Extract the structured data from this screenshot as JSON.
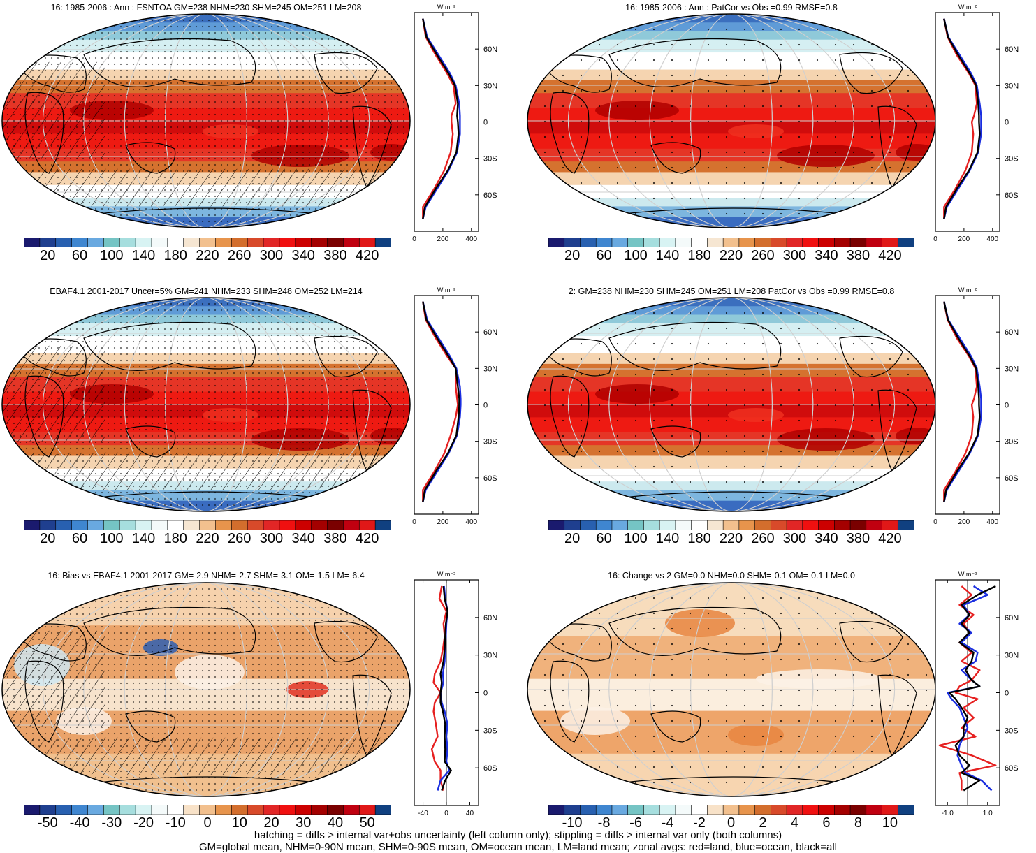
{
  "colors": {
    "abs_palette": [
      "#1a1a6e",
      "#1f3f8f",
      "#2860b0",
      "#3f86d0",
      "#69a9e0",
      "#75c4c4",
      "#a6dede",
      "#d8f3f3",
      "#f4fafa",
      "#ffffff",
      "#f6e6d2",
      "#f2c08e",
      "#e7944c",
      "#d36e2d",
      "#d84a2a",
      "#e12626",
      "#f01010",
      "#cc0000",
      "#a40000",
      "#7a0000",
      "#c00010",
      "#e01818",
      "#104080"
    ],
    "diff_palette": [
      "#1a1a6e",
      "#1f3f8f",
      "#2860b0",
      "#3f86d0",
      "#69a9e0",
      "#75c4c4",
      "#a6dede",
      "#d8f3f3",
      "#f4fafa",
      "#ffffff",
      "#f8e2c8",
      "#f2c08e",
      "#e7944c",
      "#d36e2d",
      "#d84a2a",
      "#e12626",
      "#f01010",
      "#cc0000",
      "#a40000",
      "#7a0000",
      "#c00010",
      "#e01818",
      "#104080"
    ],
    "land_line": "#e62020",
    "ocean_line": "#1a2ee0",
    "all_line": "#000000"
  },
  "panels": [
    {
      "id": "p1",
      "title": "16: 1985-2006 : Ann : FSNTOA GM=238 NHM=230 SHM=245 OM=251 LM=208",
      "kind": "abs",
      "hatch": true,
      "stipple": "dense",
      "cb_labels": [
        "20",
        "60",
        "100",
        "140",
        "180",
        "220",
        "260",
        "300",
        "340",
        "380",
        "420"
      ],
      "zonal_unit": "W m⁻²",
      "zonal_xticks": [
        "0",
        "200",
        "400"
      ],
      "zonal_lat_labels": [
        "60N",
        "30N",
        "0",
        "30S",
        "60S"
      ]
    },
    {
      "id": "p2",
      "title": "16: 1985-2006 : Ann : PatCor vs Obs =0.99 RMSE=0.8",
      "kind": "abs",
      "hatch": false,
      "stipple": "sparse",
      "cb_labels": [
        "20",
        "60",
        "100",
        "140",
        "180",
        "220",
        "260",
        "300",
        "340",
        "380",
        "420"
      ],
      "zonal_unit": "W m⁻²",
      "zonal_xticks": [
        "0",
        "200",
        "400"
      ],
      "zonal_lat_labels": [
        "60N",
        "30N",
        "0",
        "30S",
        "60S"
      ]
    },
    {
      "id": "p3",
      "title": "EBAF4.1 2001-2017 Uncer=5% GM=241 NHM=233 SHM=248 OM=252 LM=214",
      "kind": "abs",
      "hatch": true,
      "stipple": "dense",
      "cb_labels": [
        "20",
        "60",
        "100",
        "140",
        "180",
        "220",
        "260",
        "300",
        "340",
        "380",
        "420"
      ],
      "zonal_unit": "W m⁻²",
      "zonal_xticks": [
        "0",
        "200",
        "400"
      ],
      "zonal_lat_labels": [
        "60N",
        "30N",
        "0",
        "30S",
        "60S"
      ]
    },
    {
      "id": "p4",
      "title": "2: GM=238 NHM=230 SHM=245 OM=251 LM=208 PatCor vs Obs =0.99 RMSE=0.8",
      "kind": "abs",
      "hatch": false,
      "stipple": "sparse",
      "cb_labels": [
        "20",
        "60",
        "100",
        "140",
        "180",
        "220",
        "260",
        "300",
        "340",
        "380",
        "420"
      ],
      "zonal_unit": "W m⁻²",
      "zonal_xticks": [
        "0",
        "200",
        "400"
      ],
      "zonal_lat_labels": [
        "60N",
        "30N",
        "0",
        "30S",
        "60S"
      ]
    },
    {
      "id": "p5",
      "title": "16: Bias vs EBAF4.1 2001-2017 GM=-2.9 NHM=-2.7 SHM=-3.1 OM=-1.5 LM=-6.4",
      "kind": "bias",
      "hatch": true,
      "stipple": "dense",
      "cb_labels": [
        "-50",
        "-40",
        "-30",
        "-20",
        "-10",
        "0",
        "10",
        "20",
        "30",
        "40",
        "50"
      ],
      "zonal_unit": "W m⁻²",
      "zonal_xticks": [
        "-40",
        "0",
        "40"
      ],
      "zonal_lat_labels": [
        "60N",
        "30N",
        "0",
        "30S",
        "60S"
      ]
    },
    {
      "id": "p6",
      "title": "16: Change vs 2 GM=0.0 NHM=0.0 SHM=-0.1 OM=-0.1 LM=0.0",
      "kind": "change",
      "hatch": false,
      "stipple": "sparse",
      "cb_labels": [
        "-10",
        "-8",
        "-6",
        "-4",
        "-2",
        "0",
        "2",
        "4",
        "6",
        "8",
        "10"
      ],
      "zonal_unit": "W m⁻²",
      "zonal_xticks": [
        "-1.0",
        "1.0"
      ],
      "zonal_lat_labels": [
        "60N",
        "30N",
        "0",
        "30S",
        "60S"
      ]
    }
  ],
  "chart_data": [
    {
      "type": "line",
      "panel": "p1",
      "x_axis": "W m⁻²",
      "xlim": [
        0,
        450
      ],
      "ylim": [
        -90,
        90
      ],
      "y_tick_labels": [
        "60N",
        "30N",
        "0",
        "30S",
        "60S"
      ],
      "series": [
        {
          "name": "red=land",
          "lat": [
            85,
            70,
            55,
            40,
            30,
            15,
            5,
            0,
            -10,
            -25,
            -40,
            -55,
            -70,
            -80
          ],
          "values": [
            60,
            80,
            150,
            230,
            275,
            290,
            260,
            260,
            270,
            255,
            210,
            140,
            60,
            60
          ]
        },
        {
          "name": "blue=ocean",
          "lat": [
            85,
            70,
            55,
            40,
            30,
            15,
            5,
            0,
            -10,
            -25,
            -40,
            -55,
            -70,
            -80
          ],
          "values": [
            60,
            90,
            170,
            250,
            290,
            315,
            320,
            320,
            320,
            300,
            240,
            160,
            80,
            60
          ]
        },
        {
          "name": "black=all",
          "lat": [
            85,
            70,
            55,
            40,
            30,
            15,
            5,
            0,
            -10,
            -25,
            -40,
            -55,
            -70,
            -80
          ],
          "values": [
            60,
            85,
            160,
            240,
            285,
            305,
            300,
            305,
            310,
            295,
            235,
            150,
            75,
            60
          ]
        }
      ]
    },
    {
      "type": "line",
      "panel": "p2",
      "x_axis": "W m⁻²",
      "xlim": [
        0,
        450
      ],
      "ylim": [
        -90,
        90
      ],
      "y_tick_labels": [
        "60N",
        "30N",
        "0",
        "30S",
        "60S"
      ],
      "series": [
        {
          "name": "red=land",
          "lat": [
            85,
            70,
            55,
            40,
            30,
            15,
            5,
            0,
            -10,
            -25,
            -40,
            -55,
            -70,
            -80
          ],
          "values": [
            60,
            85,
            150,
            235,
            280,
            290,
            270,
            255,
            265,
            255,
            210,
            140,
            60,
            60
          ]
        },
        {
          "name": "blue=ocean",
          "lat": [
            85,
            70,
            55,
            40,
            30,
            15,
            5,
            0,
            -10,
            -25,
            -40,
            -55,
            -70,
            -80
          ],
          "values": [
            60,
            90,
            170,
            250,
            290,
            310,
            320,
            320,
            320,
            300,
            240,
            160,
            80,
            60
          ]
        },
        {
          "name": "black=all",
          "lat": [
            85,
            70,
            55,
            40,
            30,
            15,
            5,
            0,
            -10,
            -25,
            -40,
            -55,
            -70,
            -80
          ],
          "values": [
            60,
            88,
            160,
            240,
            285,
            300,
            305,
            305,
            310,
            295,
            235,
            150,
            75,
            60
          ]
        }
      ]
    },
    {
      "type": "line",
      "panel": "p3",
      "x_axis": "W m⁻²",
      "xlim": [
        0,
        450
      ],
      "ylim": [
        -90,
        90
      ],
      "y_tick_labels": [
        "60N",
        "30N",
        "0",
        "30S",
        "60S"
      ],
      "series": [
        {
          "name": "red=land",
          "lat": [
            85,
            70,
            55,
            40,
            30,
            15,
            5,
            0,
            -10,
            -25,
            -40,
            -55,
            -70,
            -80
          ],
          "values": [
            60,
            80,
            150,
            230,
            290,
            290,
            300,
            305,
            290,
            255,
            210,
            140,
            60,
            60
          ]
        },
        {
          "name": "blue=ocean",
          "lat": [
            85,
            70,
            55,
            40,
            30,
            15,
            5,
            0,
            -10,
            -25,
            -40,
            -55,
            -70,
            -80
          ],
          "values": [
            60,
            90,
            170,
            250,
            295,
            320,
            325,
            325,
            320,
            300,
            240,
            160,
            80,
            60
          ]
        },
        {
          "name": "black=all",
          "lat": [
            85,
            70,
            55,
            40,
            30,
            15,
            5,
            0,
            -10,
            -25,
            -40,
            -55,
            -70,
            -80
          ],
          "values": [
            60,
            85,
            160,
            240,
            290,
            305,
            315,
            315,
            310,
            295,
            235,
            150,
            75,
            60
          ]
        }
      ]
    },
    {
      "type": "line",
      "panel": "p4",
      "x_axis": "W m⁻²",
      "xlim": [
        0,
        450
      ],
      "ylim": [
        -90,
        90
      ],
      "y_tick_labels": [
        "60N",
        "30N",
        "0",
        "30S",
        "60S"
      ],
      "series": [
        {
          "name": "red=land",
          "lat": [
            85,
            70,
            55,
            40,
            30,
            15,
            5,
            0,
            -10,
            -25,
            -40,
            -55,
            -70,
            -80
          ],
          "values": [
            60,
            85,
            150,
            235,
            280,
            290,
            270,
            255,
            265,
            255,
            210,
            140,
            60,
            60
          ]
        },
        {
          "name": "blue=ocean",
          "lat": [
            85,
            70,
            55,
            40,
            30,
            15,
            5,
            0,
            -10,
            -25,
            -40,
            -55,
            -70,
            -80
          ],
          "values": [
            60,
            90,
            170,
            250,
            290,
            310,
            320,
            320,
            320,
            300,
            240,
            160,
            80,
            60
          ]
        },
        {
          "name": "black=all",
          "lat": [
            85,
            70,
            55,
            40,
            30,
            15,
            5,
            0,
            -10,
            -25,
            -40,
            -55,
            -70,
            -80
          ],
          "values": [
            60,
            88,
            160,
            240,
            285,
            300,
            305,
            305,
            310,
            295,
            235,
            150,
            75,
            60
          ]
        }
      ]
    },
    {
      "type": "line",
      "panel": "p5",
      "x_axis": "W m⁻²",
      "xlim": [
        -55,
        55
      ],
      "ylim": [
        -90,
        90
      ],
      "y_tick_labels": [
        "60N",
        "30N",
        "0",
        "30S",
        "60S"
      ],
      "series": [
        {
          "name": "red=land",
          "lat": [
            85,
            75,
            65,
            55,
            45,
            35,
            25,
            15,
            8,
            0,
            -8,
            -15,
            -25,
            -35,
            -45,
            -55,
            -62,
            -70,
            -78
          ],
          "values": [
            -8,
            -12,
            0,
            -5,
            -3,
            -6,
            -10,
            -20,
            -22,
            -10,
            -20,
            -22,
            -18,
            -15,
            -25,
            -20,
            -10,
            -10,
            -5
          ]
        },
        {
          "name": "blue=ocean",
          "lat": [
            85,
            75,
            65,
            55,
            45,
            35,
            25,
            15,
            8,
            0,
            -8,
            -15,
            -25,
            -35,
            -45,
            -55,
            -62,
            -70,
            -78
          ],
          "values": [
            -4,
            -2,
            2,
            0,
            -1,
            -2,
            -3,
            -6,
            -5,
            -10,
            -8,
            -3,
            2,
            0,
            2,
            0,
            5,
            -10,
            -15
          ]
        },
        {
          "name": "black=all",
          "lat": [
            85,
            75,
            65,
            55,
            45,
            35,
            25,
            15,
            8,
            0,
            -8,
            -15,
            -25,
            -35,
            -45,
            -55,
            -62,
            -70,
            -78
          ],
          "values": [
            -5,
            -3,
            2,
            -1,
            -2,
            -3,
            -5,
            -10,
            -8,
            -10,
            -10,
            -6,
            -2,
            -3,
            -2,
            -3,
            8,
            -2,
            -8
          ]
        }
      ]
    },
    {
      "type": "line",
      "panel": "p6",
      "x_axis": "W m⁻²",
      "xlim": [
        -1.6,
        1.6
      ],
      "ylim": [
        -90,
        90
      ],
      "y_tick_labels": [
        "60N",
        "30N",
        "0",
        "30S",
        "60S"
      ],
      "series": [
        {
          "name": "red=land",
          "lat": [
            85,
            78,
            70,
            62,
            55,
            48,
            40,
            32,
            25,
            18,
            10,
            5,
            0,
            -5,
            -12,
            -20,
            -28,
            -35,
            -42,
            -50,
            -58,
            -64,
            -70,
            -78
          ],
          "values": [
            -0.3,
            0.2,
            -0.4,
            0.3,
            -0.2,
            0.1,
            -0.4,
            0.2,
            -0.3,
            0.6,
            0.2,
            -0.4,
            -0.6,
            0.5,
            -0.2,
            0.3,
            -0.3,
            0.4,
            -1.4,
            0.2,
            1.4,
            -0.4,
            -0.3,
            -0.3
          ]
        },
        {
          "name": "blue=ocean",
          "lat": [
            85,
            78,
            70,
            62,
            55,
            48,
            40,
            32,
            25,
            18,
            10,
            5,
            0,
            -5,
            -12,
            -20,
            -28,
            -35,
            -42,
            -50,
            -58,
            -64,
            -70,
            -78
          ],
          "values": [
            0.3,
            1.0,
            -0.2,
            0.1,
            -0.4,
            0.2,
            -0.3,
            0.5,
            0.4,
            -0.3,
            0.2,
            0.6,
            -1.0,
            -0.8,
            -0.4,
            -0.2,
            0.0,
            -0.2,
            -0.4,
            -0.5,
            -0.3,
            -0.1,
            0.7,
            1.2
          ]
        },
        {
          "name": "black=all",
          "lat": [
            85,
            78,
            70,
            62,
            55,
            48,
            40,
            32,
            25,
            18,
            10,
            5,
            0,
            -5,
            -12,
            -20,
            -28,
            -35,
            -42,
            -50,
            -58,
            -64,
            -70,
            -78
          ],
          "values": [
            1.4,
            0.5,
            -0.3,
            0.1,
            -0.3,
            0.1,
            -0.4,
            0.3,
            0.2,
            -0.1,
            0.2,
            0.6,
            -0.9,
            -0.6,
            -0.3,
            0.0,
            -0.2,
            -0.2,
            -0.6,
            -0.4,
            0.1,
            -0.3,
            0.6,
            -0.2
          ]
        }
      ]
    }
  ],
  "footer": {
    "line1": "hatching = diffs > internal var+obs uncertainty (left column only); stippling = diffs > internal var only (both columns)",
    "line2": "GM=global mean, NHM=0-90N mean, SHM=0-90S mean, OM=ocean mean, LM=land mean; zonal avgs: red=land, blue=ocean, black=all"
  }
}
